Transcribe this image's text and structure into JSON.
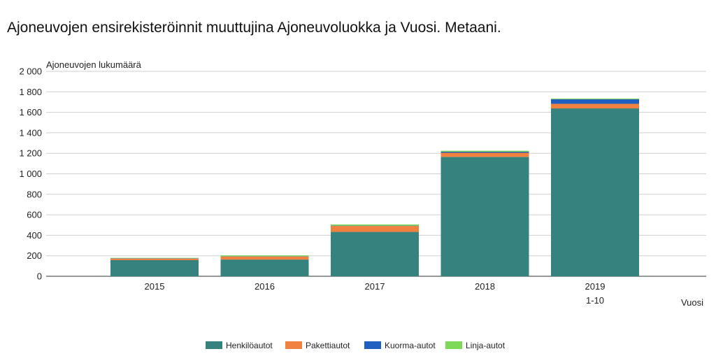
{
  "chart_data": {
    "type": "bar",
    "stacked": true,
    "title": "Ajoneuvojen ensirekisteröinnit muuttujina Ajoneuvoluokka ja Vuosi. Metaani.",
    "ylabel": "Ajoneuvojen lukumäärä",
    "xlabel": "Vuosi",
    "categories": [
      [
        "2015"
      ],
      [
        "2016"
      ],
      [
        "2017"
      ],
      [
        "2018"
      ],
      [
        "2019",
        "1-10"
      ]
    ],
    "series": [
      {
        "name": "Henkilöautot",
        "color": "#35827f",
        "values": [
          157,
          163,
          433,
          1165,
          1638
        ]
      },
      {
        "name": "Pakettiautot",
        "color": "#f0813f",
        "values": [
          16,
          30,
          58,
          40,
          45
        ]
      },
      {
        "name": "Kuorma-autot",
        "color": "#1f5fbf",
        "values": [
          3,
          2,
          3,
          10,
          45
        ]
      },
      {
        "name": "Linja-autot",
        "color": "#7ed957",
        "values": [
          4,
          9,
          12,
          10,
          7
        ]
      }
    ],
    "ylim": [
      0,
      2000
    ],
    "yticks": [
      0,
      200,
      400,
      600,
      800,
      1000,
      1200,
      1400,
      1600,
      1800,
      2000
    ],
    "ytick_labels": [
      "0",
      "200",
      "400",
      "600",
      "800",
      "1 000",
      "1 200",
      "1 400",
      "1 600",
      "1 800",
      "2 000"
    ],
    "grid": true,
    "legend_position": "bottom"
  }
}
